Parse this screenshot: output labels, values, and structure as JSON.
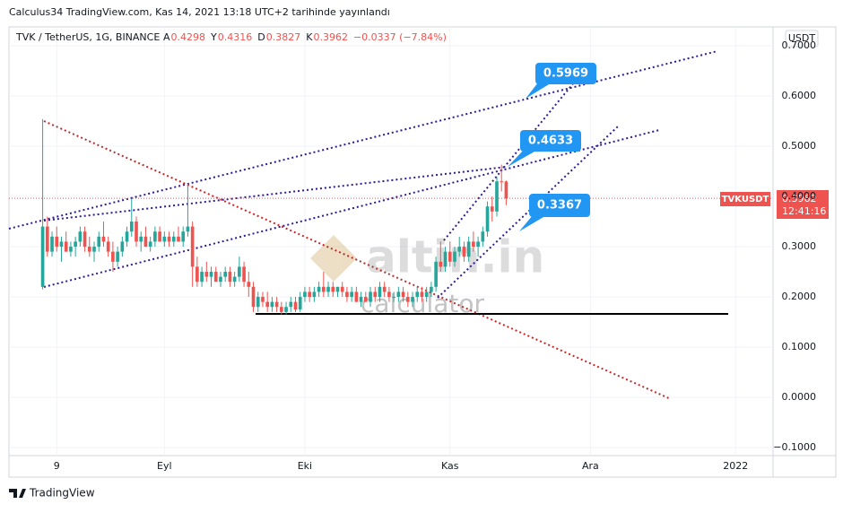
{
  "chart_data": {
    "type": "candlestick",
    "published": "Calculus34 TradingView.com, Kas 14, 2021 13:18 UTC+2 tarihinde yayınlandı",
    "symbol": "TVK / TetherUS, 1G, BINANCE",
    "header_values": [
      {
        "label": "A",
        "value": "0.4298"
      },
      {
        "label": "Y",
        "value": "0.4316"
      },
      {
        "label": "D",
        "value": "0.3827"
      },
      {
        "label": "K",
        "value": "0.3962"
      }
    ],
    "change": "−0.0337 (−7.84%)",
    "currency": "USDT",
    "price_tag": {
      "ticker": "TVKUSDT",
      "price": "0.3962",
      "countdown": "12:41:16"
    },
    "callouts": [
      "0.5969",
      "0.4633",
      "0.3367"
    ],
    "watermark": [
      "altin.in",
      "calculator"
    ],
    "brand": "TradingView",
    "up_color": "#26a69a",
    "down_color": "#ef5350",
    "xlim": [
      -2.2,
      161
    ],
    "xticks": [
      {
        "value": 8,
        "label": "9"
      },
      {
        "value": 31,
        "label": "Eyl"
      },
      {
        "value": 61,
        "label": "Eki"
      },
      {
        "value": 92,
        "label": "Kas"
      },
      {
        "value": 122,
        "label": "Ara"
      },
      {
        "value": 153,
        "label": "2022"
      }
    ],
    "ylim": [
      -0.116,
      0.7375
    ],
    "yticks": [
      {
        "value": -0.1,
        "label": "−0.1000"
      },
      {
        "value": 0,
        "label": "0.0000"
      },
      {
        "value": 0.1,
        "label": "0.1000"
      },
      {
        "value": 0.2,
        "label": "0.2000"
      },
      {
        "value": 0.3,
        "label": "0.3000"
      },
      {
        "value": 0.4,
        "label": "0.4000"
      },
      {
        "value": 0.5,
        "label": "0.5000"
      },
      {
        "value": 0.6,
        "label": "0.6000"
      },
      {
        "value": 0.7,
        "label": "0.7000"
      }
    ],
    "grid": true,
    "x": [
      5,
      6,
      7,
      8,
      9,
      10,
      11,
      12,
      13,
      14,
      15,
      16,
      17,
      18,
      19,
      20,
      21,
      22,
      23,
      24,
      25,
      26,
      27,
      28,
      29,
      30,
      31,
      32,
      33,
      34,
      35,
      36,
      37,
      38,
      39,
      40,
      41,
      42,
      43,
      44,
      45,
      46,
      47,
      48,
      49,
      50,
      51,
      52,
      53,
      54,
      55,
      56,
      57,
      58,
      59,
      60,
      61,
      62,
      63,
      64,
      65,
      66,
      67,
      68,
      69,
      70,
      71,
      72,
      73,
      74,
      75,
      76,
      77,
      78,
      79,
      80,
      81,
      82,
      83,
      84,
      85,
      86,
      87,
      88,
      89,
      90,
      91,
      92,
      93,
      94,
      95,
      96,
      97,
      98,
      99,
      100,
      101,
      102,
      103,
      104
    ],
    "ohlc": [
      [
        0.22,
        0.554,
        0.215,
        0.34
      ],
      [
        0.34,
        0.36,
        0.28,
        0.29
      ],
      [
        0.29,
        0.33,
        0.28,
        0.32
      ],
      [
        0.32,
        0.34,
        0.29,
        0.3
      ],
      [
        0.3,
        0.32,
        0.27,
        0.31
      ],
      [
        0.31,
        0.33,
        0.29,
        0.29
      ],
      [
        0.29,
        0.31,
        0.28,
        0.3
      ],
      [
        0.3,
        0.32,
        0.28,
        0.31
      ],
      [
        0.31,
        0.34,
        0.3,
        0.33
      ],
      [
        0.33,
        0.34,
        0.29,
        0.3
      ],
      [
        0.3,
        0.32,
        0.28,
        0.29
      ],
      [
        0.29,
        0.31,
        0.27,
        0.3
      ],
      [
        0.3,
        0.33,
        0.29,
        0.32
      ],
      [
        0.32,
        0.35,
        0.3,
        0.31
      ],
      [
        0.31,
        0.32,
        0.28,
        0.29
      ],
      [
        0.29,
        0.31,
        0.25,
        0.27
      ],
      [
        0.27,
        0.3,
        0.26,
        0.29
      ],
      [
        0.29,
        0.32,
        0.28,
        0.31
      ],
      [
        0.31,
        0.34,
        0.3,
        0.33
      ],
      [
        0.33,
        0.395,
        0.32,
        0.35
      ],
      [
        0.35,
        0.36,
        0.3,
        0.31
      ],
      [
        0.31,
        0.33,
        0.29,
        0.32
      ],
      [
        0.32,
        0.34,
        0.3,
        0.3
      ],
      [
        0.3,
        0.32,
        0.29,
        0.31
      ],
      [
        0.31,
        0.34,
        0.3,
        0.33
      ],
      [
        0.33,
        0.34,
        0.31,
        0.31
      ],
      [
        0.31,
        0.33,
        0.3,
        0.32
      ],
      [
        0.32,
        0.33,
        0.3,
        0.31
      ],
      [
        0.31,
        0.33,
        0.3,
        0.32
      ],
      [
        0.32,
        0.34,
        0.31,
        0.31
      ],
      [
        0.31,
        0.34,
        0.3,
        0.33
      ],
      [
        0.33,
        0.425,
        0.32,
        0.34
      ],
      [
        0.34,
        0.35,
        0.22,
        0.26
      ],
      [
        0.26,
        0.28,
        0.22,
        0.23
      ],
      [
        0.23,
        0.26,
        0.22,
        0.25
      ],
      [
        0.25,
        0.27,
        0.23,
        0.24
      ],
      [
        0.24,
        0.26,
        0.22,
        0.25
      ],
      [
        0.25,
        0.26,
        0.23,
        0.23
      ],
      [
        0.23,
        0.25,
        0.22,
        0.24
      ],
      [
        0.24,
        0.26,
        0.23,
        0.25
      ],
      [
        0.25,
        0.26,
        0.22,
        0.23
      ],
      [
        0.23,
        0.25,
        0.22,
        0.24
      ],
      [
        0.24,
        0.28,
        0.23,
        0.26
      ],
      [
        0.26,
        0.27,
        0.22,
        0.23
      ],
      [
        0.23,
        0.25,
        0.2,
        0.22
      ],
      [
        0.22,
        0.23,
        0.17,
        0.18
      ],
      [
        0.18,
        0.21,
        0.17,
        0.2
      ],
      [
        0.2,
        0.21,
        0.18,
        0.19
      ],
      [
        0.19,
        0.21,
        0.17,
        0.18
      ],
      [
        0.18,
        0.2,
        0.17,
        0.19
      ],
      [
        0.19,
        0.2,
        0.17,
        0.18
      ],
      [
        0.18,
        0.19,
        0.165,
        0.17
      ],
      [
        0.17,
        0.19,
        0.165,
        0.18
      ],
      [
        0.18,
        0.2,
        0.17,
        0.19
      ],
      [
        0.19,
        0.2,
        0.17,
        0.175
      ],
      [
        0.175,
        0.21,
        0.17,
        0.2
      ],
      [
        0.2,
        0.22,
        0.19,
        0.21
      ],
      [
        0.21,
        0.22,
        0.19,
        0.2
      ],
      [
        0.2,
        0.22,
        0.19,
        0.21
      ],
      [
        0.21,
        0.23,
        0.2,
        0.22
      ],
      [
        0.22,
        0.25,
        0.2,
        0.21
      ],
      [
        0.21,
        0.23,
        0.2,
        0.22
      ],
      [
        0.22,
        0.23,
        0.2,
        0.21
      ],
      [
        0.21,
        0.22,
        0.2,
        0.22
      ],
      [
        0.22,
        0.23,
        0.2,
        0.21
      ],
      [
        0.21,
        0.22,
        0.19,
        0.2
      ],
      [
        0.2,
        0.22,
        0.19,
        0.21
      ],
      [
        0.21,
        0.22,
        0.19,
        0.19
      ],
      [
        0.19,
        0.21,
        0.18,
        0.2
      ],
      [
        0.2,
        0.21,
        0.19,
        0.19
      ],
      [
        0.19,
        0.22,
        0.18,
        0.21
      ],
      [
        0.21,
        0.22,
        0.19,
        0.2
      ],
      [
        0.2,
        0.23,
        0.19,
        0.22
      ],
      [
        0.22,
        0.23,
        0.2,
        0.21
      ],
      [
        0.21,
        0.22,
        0.19,
        0.2
      ],
      [
        0.2,
        0.21,
        0.19,
        0.2
      ],
      [
        0.2,
        0.22,
        0.19,
        0.21
      ],
      [
        0.21,
        0.22,
        0.19,
        0.2
      ],
      [
        0.2,
        0.21,
        0.18,
        0.19
      ],
      [
        0.19,
        0.21,
        0.18,
        0.2
      ],
      [
        0.2,
        0.22,
        0.19,
        0.21
      ],
      [
        0.21,
        0.22,
        0.19,
        0.2
      ],
      [
        0.2,
        0.22,
        0.19,
        0.21
      ],
      [
        0.21,
        0.23,
        0.2,
        0.22
      ],
      [
        0.22,
        0.28,
        0.21,
        0.27
      ],
      [
        0.27,
        0.31,
        0.25,
        0.26
      ],
      [
        0.26,
        0.3,
        0.25,
        0.29
      ],
      [
        0.29,
        0.31,
        0.26,
        0.27
      ],
      [
        0.27,
        0.3,
        0.26,
        0.29
      ],
      [
        0.29,
        0.32,
        0.28,
        0.3
      ],
      [
        0.3,
        0.31,
        0.27,
        0.28
      ],
      [
        0.28,
        0.32,
        0.27,
        0.31
      ],
      [
        0.31,
        0.33,
        0.29,
        0.3
      ],
      [
        0.3,
        0.32,
        0.28,
        0.31
      ],
      [
        0.31,
        0.34,
        0.3,
        0.33
      ],
      [
        0.33,
        0.39,
        0.32,
        0.38
      ],
      [
        0.38,
        0.4,
        0.35,
        0.37
      ],
      [
        0.37,
        0.44,
        0.36,
        0.43
      ],
      [
        0.43,
        0.4633,
        0.41,
        0.4298
      ],
      [
        0.4298,
        0.4316,
        0.3827,
        0.3962
      ]
    ]
  }
}
